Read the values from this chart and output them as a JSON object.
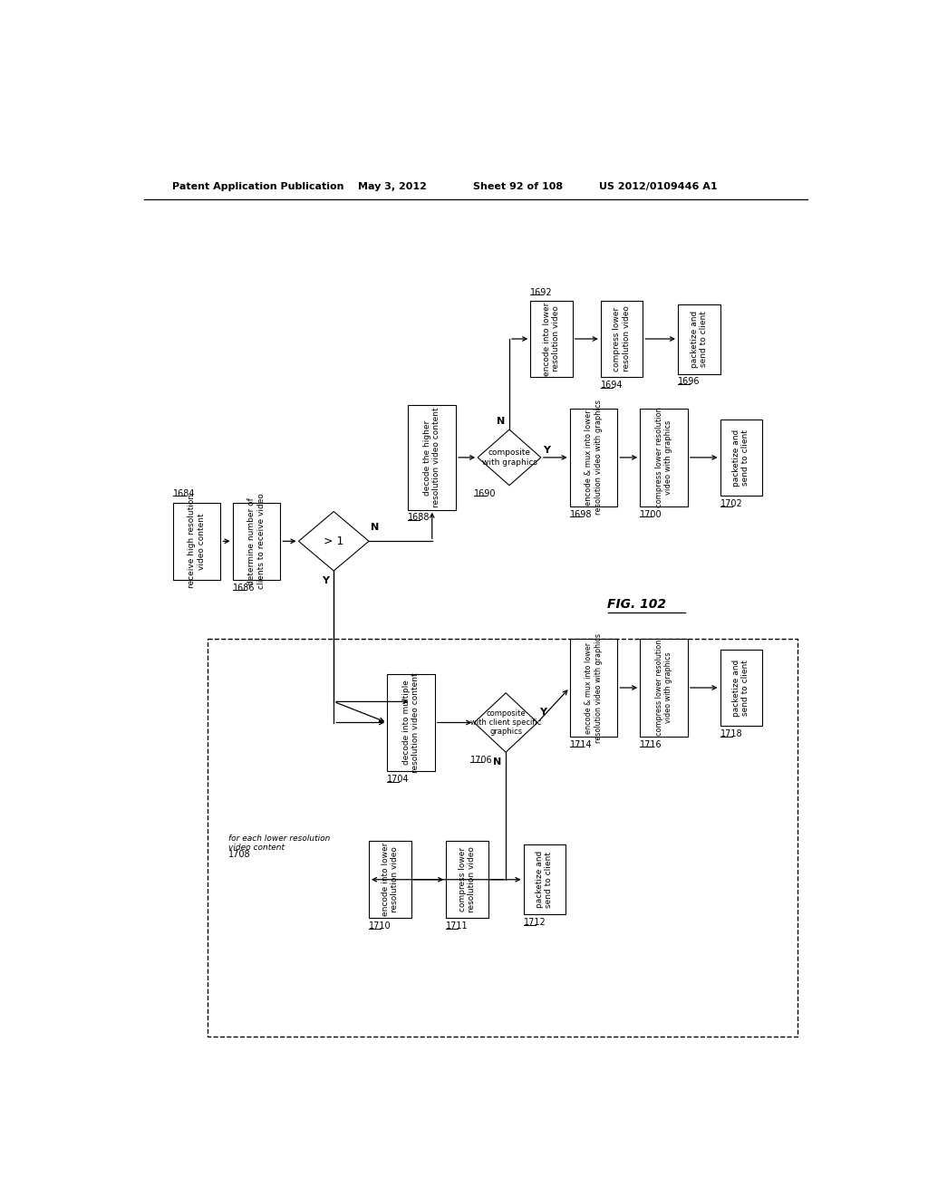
{
  "header_left": "Patent Application Publication",
  "header_mid1": "May 3, 2012",
  "header_mid2": "Sheet 92 of 108",
  "header_right": "US 2012/0109446 A1",
  "fig_label": "FIG. 102",
  "background": "#ffffff",
  "nodes": {
    "1684": {
      "type": "rect",
      "text": "receive high resolution\nvideo content",
      "label": "1684"
    },
    "1686": {
      "type": "rect",
      "text": "determine number of\nclients to receive video",
      "label": "1686"
    },
    "main_d": {
      "type": "diamond",
      "text": "> 1"
    },
    "1688": {
      "type": "rect",
      "text": "decode the higher\nresolution video content",
      "label": "1688"
    },
    "1690": {
      "type": "diamond",
      "text": "composite\nwith graphics",
      "label": "1690"
    },
    "1692": {
      "type": "rect",
      "text": "encode into lower\nresolution video",
      "label": "1692"
    },
    "1694": {
      "type": "rect",
      "text": "compress lower\nresolution video",
      "label": "1694"
    },
    "1696": {
      "type": "rect",
      "text": "packetize and\nsend to client",
      "label": "1696"
    },
    "1698": {
      "type": "rect",
      "text": "encode & mux into lower\nresolution video with graphics",
      "label": "1698"
    },
    "1700": {
      "type": "rect",
      "text": "compress lower resolution\nvideo with graphics",
      "label": "1700"
    },
    "1702": {
      "type": "rect",
      "text": "packetize and\nsend to client",
      "label": "1702"
    },
    "1704": {
      "type": "rect",
      "text": "decode into multiple\nresolution video content",
      "label": "1704"
    },
    "1706": {
      "type": "diamond",
      "text": "composite\nwith client specific\ngraphics",
      "label": "1706"
    },
    "1714": {
      "type": "rect",
      "text": "encode & mux into lower\nresolution video with graphics",
      "label": "1714"
    },
    "1716": {
      "type": "rect",
      "text": "compress lower resolution\nvideo with graphics",
      "label": "1716"
    },
    "1718": {
      "type": "rect",
      "text": "packetize and\nsend to client",
      "label": "1718"
    },
    "1708": {
      "type": "rect",
      "text": "encode into lower\nresolution video",
      "label": "1708"
    },
    "1710": {
      "type": "rect",
      "text": "compress lower\nresolution video",
      "label": "1710"
    },
    "1712": {
      "type": "rect",
      "text": "packetize and\nsend to client",
      "label": "1712"
    }
  }
}
